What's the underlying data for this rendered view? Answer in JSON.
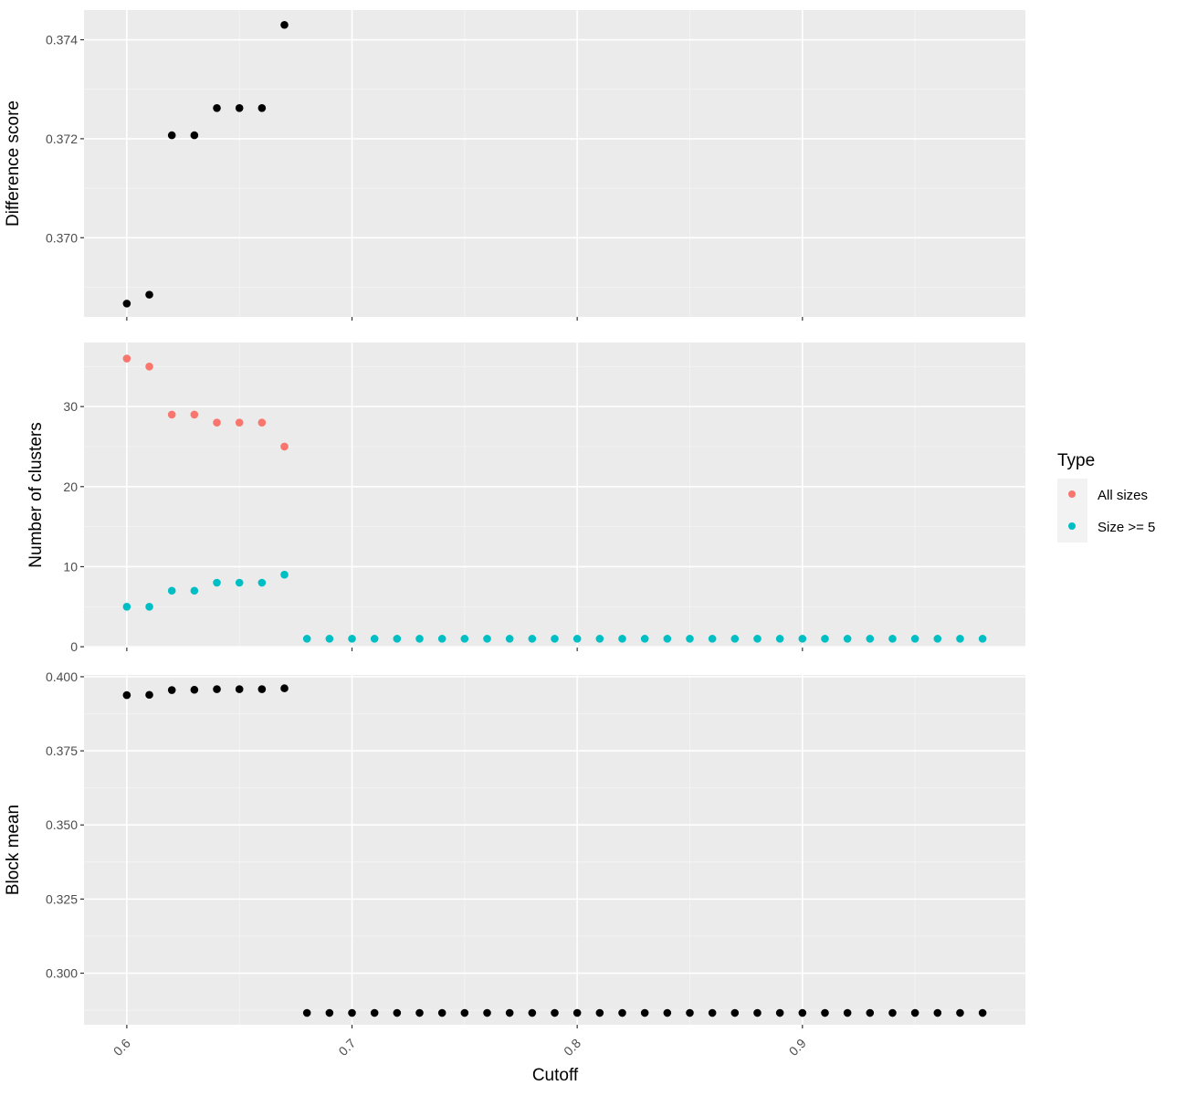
{
  "chart_data": [
    {
      "type": "scatter",
      "ylabel": "Difference score",
      "ylim": [
        0.3684,
        0.3746
      ],
      "yticks": [
        0.37,
        0.372,
        0.374
      ],
      "ytick_labels": [
        "0.370",
        "0.372",
        "0.374"
      ],
      "color": "#000000",
      "series": [
        {
          "x": [
            0.6,
            0.61,
            0.62,
            0.63,
            0.64,
            0.65,
            0.66,
            0.67
          ],
          "y": [
            0.36867,
            0.36885,
            0.37207,
            0.37207,
            0.37262,
            0.37262,
            0.37262,
            0.3743
          ]
        }
      ]
    },
    {
      "type": "scatter",
      "ylabel": "Number of clusters",
      "ylim": [
        -0.1,
        38
      ],
      "yticks": [
        0,
        10,
        20,
        30
      ],
      "ytick_labels": [
        "0",
        "10",
        "20",
        "30"
      ],
      "series": [
        {
          "name": "All sizes",
          "color": "#F8766D",
          "x": [
            0.6,
            0.61,
            0.62,
            0.63,
            0.64,
            0.65,
            0.66,
            0.67
          ],
          "y": [
            36,
            35,
            29,
            29,
            28,
            28,
            28,
            25
          ]
        },
        {
          "name": "Size >= 5",
          "color": "#00BFC4",
          "x": [
            0.6,
            0.61,
            0.62,
            0.63,
            0.64,
            0.65,
            0.66,
            0.67,
            0.68,
            0.69,
            0.7,
            0.71,
            0.72,
            0.73,
            0.74,
            0.75,
            0.76,
            0.77,
            0.78,
            0.79,
            0.8,
            0.81,
            0.82,
            0.83,
            0.84,
            0.85,
            0.86,
            0.87,
            0.88,
            0.89,
            0.9,
            0.91,
            0.92,
            0.93,
            0.94,
            0.95,
            0.96,
            0.97,
            0.98
          ],
          "y": [
            5,
            5,
            7,
            7,
            8,
            8,
            8,
            9,
            1,
            1,
            1,
            1,
            1,
            1,
            1,
            1,
            1,
            1,
            1,
            1,
            1,
            1,
            1,
            1,
            1,
            1,
            1,
            1,
            1,
            1,
            1,
            1,
            1,
            1,
            1,
            1,
            1,
            1,
            1
          ]
        }
      ]
    },
    {
      "type": "scatter",
      "ylabel": "Block mean",
      "ylim": [
        0.2826,
        0.4006
      ],
      "yticks": [
        0.3,
        0.325,
        0.35,
        0.375,
        0.4
      ],
      "ytick_labels": [
        "0.300",
        "0.325",
        "0.350",
        "0.375",
        "0.400"
      ],
      "color": "#000000",
      "series": [
        {
          "x": [
            0.6,
            0.61,
            0.62,
            0.63,
            0.64,
            0.65,
            0.66,
            0.67,
            0.68,
            0.69,
            0.7,
            0.71,
            0.72,
            0.73,
            0.74,
            0.75,
            0.76,
            0.77,
            0.78,
            0.79,
            0.8,
            0.81,
            0.82,
            0.83,
            0.84,
            0.85,
            0.86,
            0.87,
            0.88,
            0.89,
            0.9,
            0.91,
            0.92,
            0.93,
            0.94,
            0.95,
            0.96,
            0.97,
            0.98
          ],
          "y": [
            0.3938,
            0.3939,
            0.3955,
            0.3956,
            0.3958,
            0.3958,
            0.3958,
            0.3961,
            0.2866,
            0.2866,
            0.2866,
            0.2866,
            0.2866,
            0.2866,
            0.2866,
            0.2866,
            0.2866,
            0.2866,
            0.2866,
            0.2866,
            0.2866,
            0.2866,
            0.2866,
            0.2866,
            0.2866,
            0.2866,
            0.2866,
            0.2866,
            0.2866,
            0.2866,
            0.2866,
            0.2866,
            0.2866,
            0.2866,
            0.2866,
            0.2866,
            0.2866,
            0.2866,
            0.2866
          ]
        }
      ]
    }
  ],
  "x_axis": {
    "label": "Cutoff",
    "xlim": [
      0.581,
      0.999
    ],
    "ticks": [
      0.6,
      0.7,
      0.8,
      0.9
    ],
    "tick_labels": [
      "0.6",
      "0.7",
      "0.8",
      "0.9"
    ]
  },
  "legend": {
    "title": "Type",
    "position": "right",
    "items": [
      {
        "label": "All sizes",
        "color": "#F8766D"
      },
      {
        "label": "Size >= 5",
        "color": "#00BFC4"
      }
    ]
  },
  "theme": {
    "panel_bg": "#EBEBEB",
    "grid_major": "#FFFFFF",
    "grid_minor": "#F5F5F5",
    "tick_color": "#333333",
    "text_color": "#4D4D4D"
  }
}
